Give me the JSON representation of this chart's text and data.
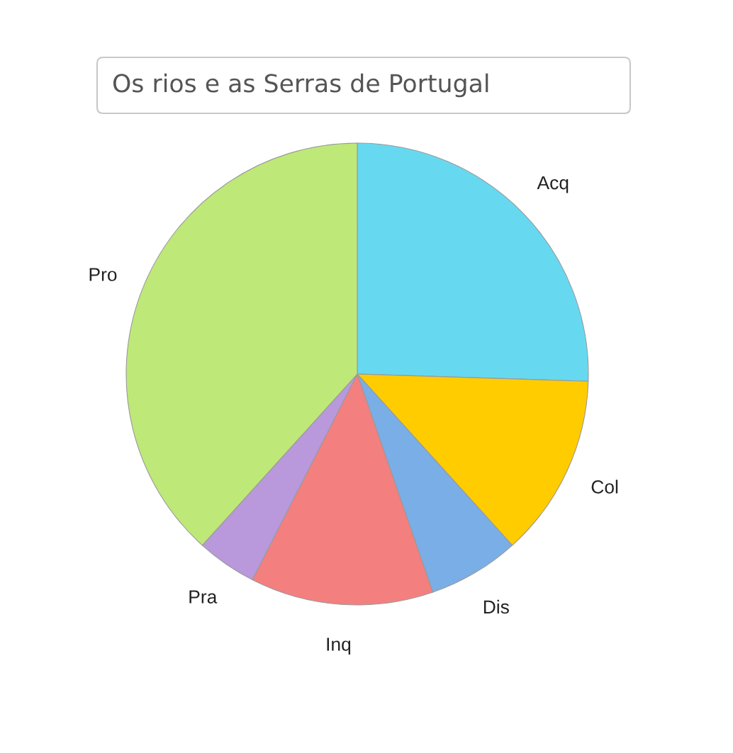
{
  "chart_data": {
    "type": "pie",
    "title": "Os rios e as Serras de Portugal",
    "categories": [
      "Acq",
      "Col",
      "Dis",
      "Inq",
      "Pra",
      "Pro"
    ],
    "values": [
      25.5,
      12.8,
      6.4,
      12.8,
      4.2,
      38.3
    ],
    "colors": [
      "#66d9f0",
      "#ffcc00",
      "#7aaee6",
      "#f47f7f",
      "#b998db",
      "#bee878"
    ]
  }
}
